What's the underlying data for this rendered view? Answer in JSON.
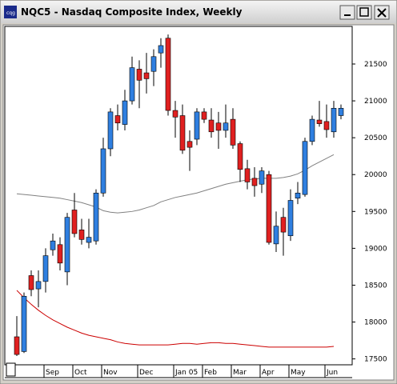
{
  "window_title": "NQC5 - Nasdaq Composite Index, Weekly",
  "chart_data": {
    "type": "candlestick",
    "categories": [
      null,
      null,
      null,
      null,
      null,
      "Sep",
      null,
      null,
      null,
      "Oct",
      null,
      null,
      null,
      "Nov",
      null,
      null,
      null,
      null,
      "Dec",
      null,
      null,
      null,
      null,
      "Jan 05",
      null,
      null,
      null,
      "Feb",
      null,
      null,
      null,
      "Mar",
      null,
      null,
      null,
      "Apr",
      null,
      null,
      null,
      "May",
      null,
      null,
      null,
      null,
      "Jun",
      null
    ],
    "open": [
      17800,
      17600,
      18630,
      18450,
      18550,
      18980,
      19050,
      18680,
      19520,
      19250,
      19080,
      19100,
      19750,
      20350,
      20800,
      20680,
      21000,
      21430,
      21380,
      21400,
      21650,
      21850,
      20870,
      20800,
      20450,
      20480,
      20850,
      20740,
      20700,
      20600,
      20750,
      20420,
      20080,
      19950,
      19870,
      20000,
      19060,
      19420,
      19170,
      19680,
      19730,
      20450,
      20740,
      20720,
      20580,
      20800
    ],
    "high": [
      18080,
      18400,
      18700,
      18700,
      19000,
      19200,
      19150,
      19480,
      19750,
      19400,
      19400,
      19800,
      20500,
      20900,
      20950,
      21150,
      21600,
      21550,
      21650,
      21700,
      21850,
      21900,
      21000,
      20950,
      20600,
      20900,
      20900,
      20900,
      20850,
      20950,
      20900,
      20450,
      20200,
      20100,
      20100,
      20050,
      19500,
      19550,
      19800,
      19900,
      20500,
      20800,
      21000,
      20950,
      21000,
      20950
    ],
    "low": [
      17540,
      17580,
      18350,
      18200,
      18400,
      18900,
      18700,
      18500,
      19150,
      19050,
      19000,
      19050,
      19700,
      20250,
      20600,
      20600,
      20950,
      20900,
      21100,
      21200,
      21450,
      20800,
      20500,
      20280,
      20050,
      20400,
      20700,
      20500,
      20350,
      20500,
      20350,
      19900,
      19800,
      19700,
      19750,
      19050,
      18950,
      18900,
      19100,
      19600,
      19700,
      20400,
      20650,
      20500,
      20500,
      20750
    ],
    "close": [
      17560,
      18350,
      18440,
      18550,
      18900,
      19100,
      18800,
      19420,
      19200,
      19120,
      19150,
      19750,
      20350,
      20850,
      20700,
      21000,
      21450,
      21280,
      21300,
      21600,
      21750,
      20870,
      20780,
      20330,
      20370,
      20850,
      20750,
      20580,
      20600,
      20700,
      20400,
      20070,
      19900,
      19850,
      20050,
      19080,
      19300,
      19220,
      19650,
      19750,
      20450,
      20750,
      20690,
      20610,
      20900,
      20900
    ],
    "up_color": "#2f7fe0",
    "down_color": "#e02020",
    "lines": [
      {
        "color": "#808080",
        "values": [
          19740,
          19730,
          19720,
          19710,
          19700,
          19690,
          19680,
          19660,
          19640,
          19620,
          19590,
          19560,
          19510,
          19490,
          19480,
          19490,
          19500,
          19520,
          19550,
          19580,
          19630,
          19660,
          19690,
          19710,
          19730,
          19750,
          19780,
          19810,
          19840,
          19870,
          19890,
          19910,
          19930,
          19940,
          19950,
          19950,
          19950,
          19960,
          19980,
          20010,
          20060,
          20120,
          20170,
          20220,
          20270,
          null
        ]
      },
      {
        "color": "#cc0000",
        "values": [
          18430,
          18330,
          18240,
          18160,
          18090,
          18030,
          17980,
          17930,
          17890,
          17850,
          17820,
          17800,
          17780,
          17760,
          17730,
          17710,
          17700,
          17690,
          17690,
          17690,
          17690,
          17690,
          17700,
          17710,
          17710,
          17700,
          17710,
          17720,
          17720,
          17710,
          17710,
          17700,
          17690,
          17680,
          17670,
          17660,
          17660,
          17660,
          17660,
          17660,
          17660,
          17660,
          17660,
          17660,
          17670,
          null
        ]
      }
    ],
    "ylim": [
      17420,
      22010
    ],
    "yticks": [
      17500,
      18000,
      18500,
      19000,
      19500,
      20000,
      20500,
      21000,
      21500
    ]
  }
}
